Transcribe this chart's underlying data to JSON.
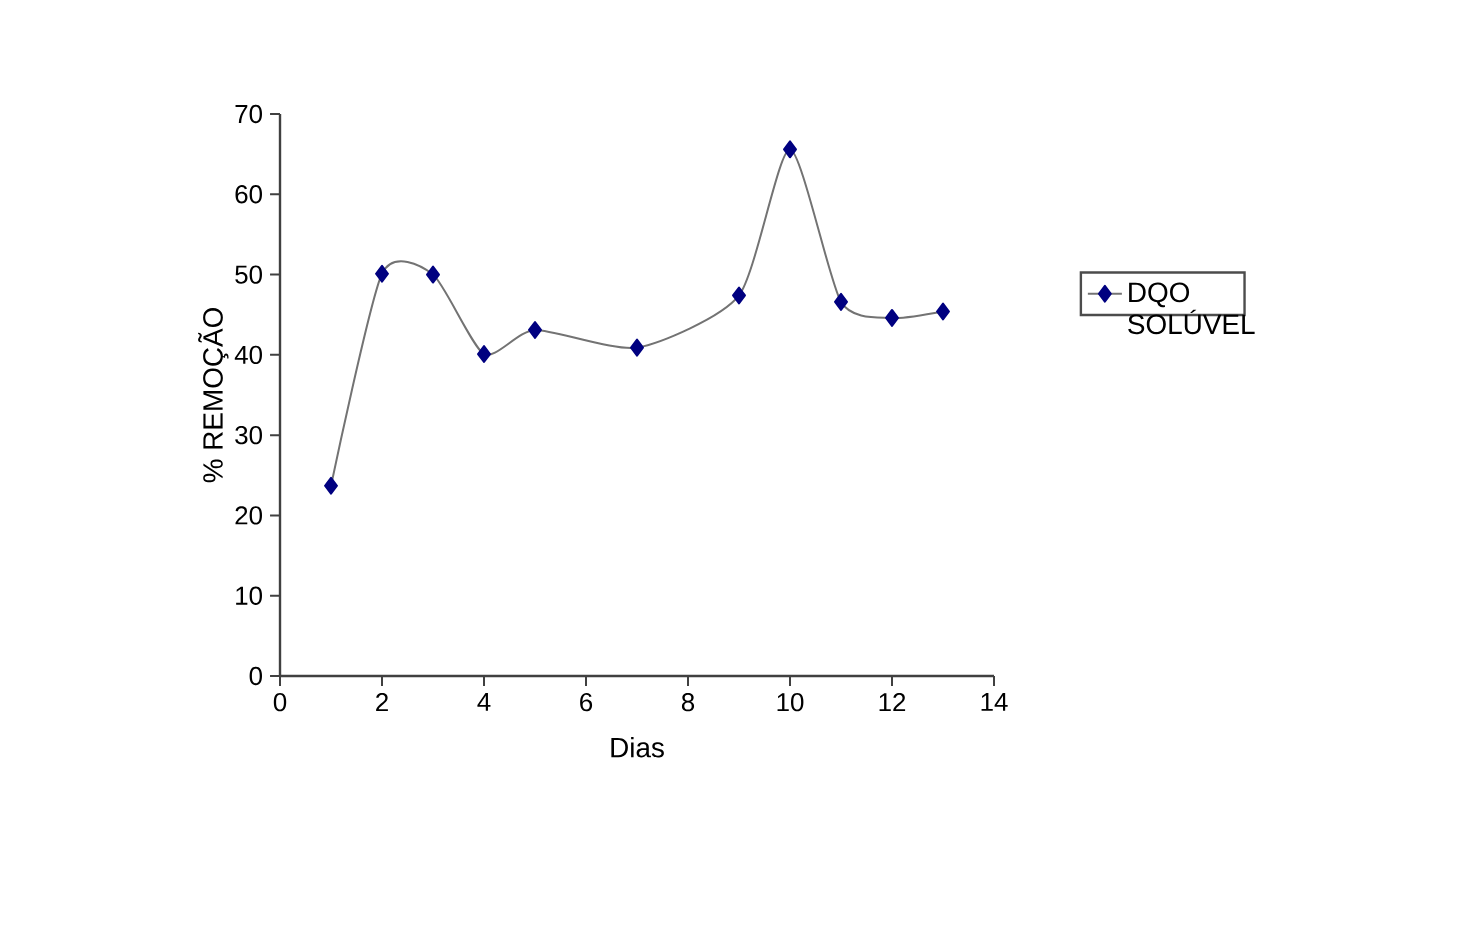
{
  "chart_data": {
    "type": "line",
    "xlabel": "Dias",
    "ylabel": "% REMOÇÃO",
    "x": [
      1,
      2,
      3,
      4,
      5,
      7,
      9,
      10,
      11,
      12,
      13
    ],
    "series": [
      {
        "name": "DQO SOLÚVEL",
        "color": "#000080",
        "values": [
          23.7,
          50.1,
          50,
          40.1,
          43.1,
          40.9,
          47.4,
          65.6,
          46.6,
          44.6,
          45.4
        ]
      }
    ],
    "xlim": [
      0,
      14
    ],
    "ylim": [
      0,
      70
    ],
    "xticks": [
      0,
      2,
      4,
      6,
      8,
      10,
      12,
      14
    ],
    "yticks": [
      0,
      10,
      20,
      30,
      40,
      50,
      60,
      70
    ],
    "marker": "diamond",
    "legend": "right",
    "grid": false
  }
}
